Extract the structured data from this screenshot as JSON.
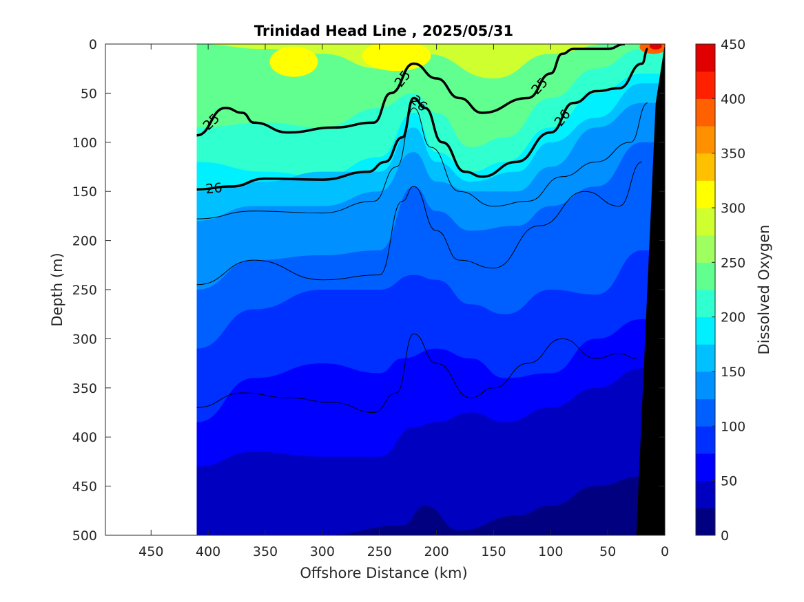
{
  "chart_data": {
    "type": "heatmap",
    "title": "Trinidad Head Line , 2025/05/31",
    "xlabel": "Offshore Distance (km)",
    "ylabel": "Depth (m)",
    "colorbar_label": "Dissolved Oxygen",
    "x_axis_reversed": true,
    "y_axis_reversed": true,
    "xlim": [
      0,
      490
    ],
    "ylim": [
      0,
      500
    ],
    "x_ticks": [
      450,
      400,
      350,
      300,
      250,
      200,
      150,
      100,
      50,
      0
    ],
    "y_ticks": [
      0,
      50,
      100,
      150,
      200,
      250,
      300,
      350,
      400,
      450,
      500
    ],
    "colorbar": {
      "range": [
        0,
        450
      ],
      "ticks": [
        0,
        50,
        100,
        150,
        200,
        250,
        300,
        350,
        400,
        450
      ],
      "levels": [
        0,
        25,
        50,
        75,
        100,
        125,
        150,
        175,
        200,
        225,
        250,
        275,
        300,
        325,
        350,
        375,
        400,
        425,
        450
      ],
      "colors": [
        "#000080",
        "#0000c0",
        "#0000ff",
        "#0030ff",
        "#0060ff",
        "#0090ff",
        "#00c0ff",
        "#00f0ff",
        "#30ffd0",
        "#60ff90",
        "#a0ff60",
        "#d0ff30",
        "#ffff00",
        "#ffc000",
        "#ff9000",
        "#ff6000",
        "#ff2000",
        "#e00000",
        "#a00000"
      ]
    },
    "data_extent_km": [
      0,
      410
    ],
    "bathymetry_color": "#000000",
    "oxygen_bands": [
      {
        "level": 250,
        "depth_profile": [
          [
            410,
            0
          ],
          [
            350,
            5
          ],
          [
            300,
            10
          ],
          [
            250,
            25
          ],
          [
            210,
            10
          ],
          [
            150,
            35
          ],
          [
            100,
            10
          ],
          [
            50,
            0
          ]
        ]
      },
      {
        "level": 225,
        "depth_profile": [
          [
            410,
            85
          ],
          [
            350,
            80
          ],
          [
            300,
            85
          ],
          [
            250,
            65
          ],
          [
            220,
            50
          ],
          [
            200,
            70
          ],
          [
            170,
            105
          ],
          [
            140,
            95
          ],
          [
            100,
            55
          ],
          [
            60,
            25
          ],
          [
            20,
            5
          ]
        ]
      },
      {
        "level": 200,
        "depth_profile": [
          [
            410,
            120
          ],
          [
            350,
            130
          ],
          [
            300,
            135
          ],
          [
            250,
            115
          ],
          [
            220,
            70
          ],
          [
            200,
            110
          ],
          [
            170,
            130
          ],
          [
            140,
            120
          ],
          [
            100,
            85
          ],
          [
            60,
            50
          ],
          [
            20,
            30
          ]
        ]
      },
      {
        "level": 175,
        "depth_profile": [
          [
            410,
            150
          ],
          [
            350,
            140
          ],
          [
            300,
            130
          ],
          [
            250,
            130
          ],
          [
            220,
            85
          ],
          [
            200,
            120
          ],
          [
            170,
            140
          ],
          [
            130,
            130
          ],
          [
            100,
            100
          ],
          [
            60,
            75
          ],
          [
            20,
            40
          ]
        ]
      },
      {
        "level": 150,
        "depth_profile": [
          [
            410,
            180
          ],
          [
            360,
            165
          ],
          [
            300,
            165
          ],
          [
            250,
            150
          ],
          [
            220,
            110
          ],
          [
            200,
            140
          ],
          [
            170,
            150
          ],
          [
            130,
            150
          ],
          [
            100,
            125
          ],
          [
            60,
            85
          ],
          [
            20,
            60
          ]
        ]
      },
      {
        "level": 125,
        "depth_profile": [
          [
            410,
            250
          ],
          [
            360,
            220
          ],
          [
            300,
            215
          ],
          [
            250,
            210
          ],
          [
            220,
            145
          ],
          [
            200,
            170
          ],
          [
            170,
            190
          ],
          [
            130,
            185
          ],
          [
            100,
            165
          ],
          [
            60,
            145
          ],
          [
            20,
            100
          ]
        ]
      },
      {
        "level": 100,
        "depth_profile": [
          [
            410,
            310
          ],
          [
            360,
            270
          ],
          [
            300,
            250
          ],
          [
            250,
            250
          ],
          [
            220,
            235
          ],
          [
            200,
            240
          ],
          [
            170,
            265
          ],
          [
            140,
            275
          ],
          [
            100,
            250
          ],
          [
            60,
            255
          ],
          [
            20,
            210
          ]
        ]
      },
      {
        "level": 75,
        "depth_profile": [
          [
            410,
            385
          ],
          [
            360,
            340
          ],
          [
            300,
            325
          ],
          [
            250,
            335
          ],
          [
            230,
            320
          ],
          [
            200,
            310
          ],
          [
            170,
            320
          ],
          [
            140,
            340
          ],
          [
            100,
            335
          ],
          [
            60,
            300
          ],
          [
            20,
            280
          ]
        ]
      },
      {
        "level": 50,
        "depth_profile": [
          [
            410,
            430
          ],
          [
            360,
            415
          ],
          [
            300,
            420
          ],
          [
            250,
            420
          ],
          [
            220,
            390
          ],
          [
            200,
            385
          ],
          [
            170,
            375
          ],
          [
            140,
            385
          ],
          [
            100,
            370
          ],
          [
            60,
            350
          ],
          [
            20,
            330
          ]
        ]
      },
      {
        "level": 25,
        "depth_profile": [
          [
            410,
            500
          ],
          [
            300,
            500
          ],
          [
            230,
            490
          ],
          [
            210,
            470
          ],
          [
            180,
            495
          ],
          [
            130,
            480
          ],
          [
            100,
            470
          ],
          [
            60,
            450
          ],
          [
            20,
            440
          ]
        ]
      }
    ],
    "density_contours": [
      {
        "label": "25",
        "bold": true,
        "points": [
          [
            410,
            93
          ],
          [
            385,
            65
          ],
          [
            370,
            70
          ],
          [
            360,
            80
          ],
          [
            330,
            90
          ],
          [
            290,
            85
          ],
          [
            255,
            80
          ],
          [
            240,
            50
          ],
          [
            220,
            20
          ],
          [
            200,
            35
          ],
          [
            180,
            55
          ],
          [
            160,
            70
          ],
          [
            120,
            55
          ],
          [
            100,
            30
          ],
          [
            90,
            10
          ],
          [
            80,
            5
          ],
          [
            50,
            5
          ],
          [
            35,
            0
          ]
        ]
      },
      {
        "label": "26",
        "bold": true,
        "points": [
          [
            410,
            148
          ],
          [
            380,
            145
          ],
          [
            350,
            137
          ],
          [
            300,
            138
          ],
          [
            260,
            130
          ],
          [
            245,
            120
          ],
          [
            230,
            95
          ],
          [
            220,
            55
          ],
          [
            210,
            65
          ],
          [
            195,
            100
          ],
          [
            175,
            130
          ],
          [
            160,
            135
          ],
          [
            130,
            120
          ],
          [
            100,
            90
          ],
          [
            80,
            60
          ],
          [
            60,
            48
          ],
          [
            40,
            45
          ],
          [
            20,
            20
          ],
          [
            15,
            5
          ]
        ]
      },
      {
        "label": "",
        "bold": false,
        "points": [
          [
            410,
            178
          ],
          [
            360,
            170
          ],
          [
            300,
            172
          ],
          [
            255,
            160
          ],
          [
            235,
            125
          ],
          [
            220,
            65
          ],
          [
            205,
            105
          ],
          [
            180,
            150
          ],
          [
            150,
            165
          ],
          [
            120,
            160
          ],
          [
            90,
            135
          ],
          [
            60,
            120
          ],
          [
            30,
            100
          ],
          [
            15,
            60
          ]
        ]
      },
      {
        "label": "",
        "bold": false,
        "points": [
          [
            410,
            245
          ],
          [
            360,
            220
          ],
          [
            300,
            240
          ],
          [
            250,
            235
          ],
          [
            230,
            160
          ],
          [
            220,
            145
          ],
          [
            200,
            190
          ],
          [
            180,
            220
          ],
          [
            150,
            228
          ],
          [
            110,
            185
          ],
          [
            70,
            150
          ],
          [
            40,
            165
          ],
          [
            20,
            120
          ]
        ]
      },
      {
        "label": "",
        "bold": false,
        "points": [
          [
            410,
            370
          ],
          [
            370,
            355
          ],
          [
            330,
            360
          ],
          [
            290,
            365
          ],
          [
            255,
            375
          ],
          [
            235,
            355
          ],
          [
            220,
            295
          ],
          [
            200,
            325
          ],
          [
            170,
            360
          ],
          [
            150,
            350
          ],
          [
            120,
            325
          ],
          [
            90,
            300
          ],
          [
            60,
            320
          ],
          [
            40,
            315
          ],
          [
            25,
            320
          ]
        ]
      }
    ]
  }
}
